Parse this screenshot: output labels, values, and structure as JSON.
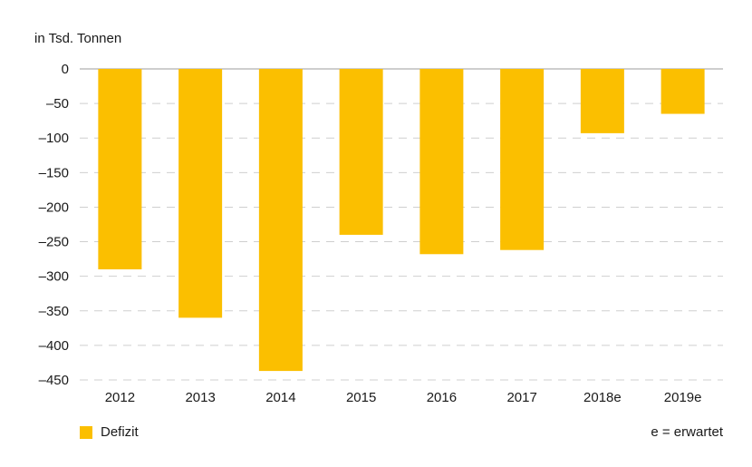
{
  "chart_data": {
    "type": "bar",
    "ylabel": "in Tsd. Tonnen",
    "categories": [
      "2012",
      "2013",
      "2014",
      "2015",
      "2016",
      "2017",
      "2018e",
      "2019e"
    ],
    "series": [
      {
        "name": "Defizit",
        "values": [
          -290,
          -360,
          -437,
          -240,
          -268,
          -262,
          -93,
          -65
        ]
      }
    ],
    "ylim": [
      -450,
      0
    ],
    "yticks": [
      0,
      -50,
      -100,
      -150,
      -200,
      -250,
      -300,
      -350,
      -400,
      -450
    ],
    "ytick_labels": [
      "0",
      "–50",
      "–100",
      "–150",
      "–200",
      "–250",
      "–300",
      "–350",
      "–400",
      "–450"
    ],
    "grid": true,
    "legend": "bottom-left",
    "note": "e = erwartet",
    "colors": {
      "bar": "#fbbf00",
      "grid": "#cfcfcf",
      "axis": "#bdbdbd"
    }
  }
}
